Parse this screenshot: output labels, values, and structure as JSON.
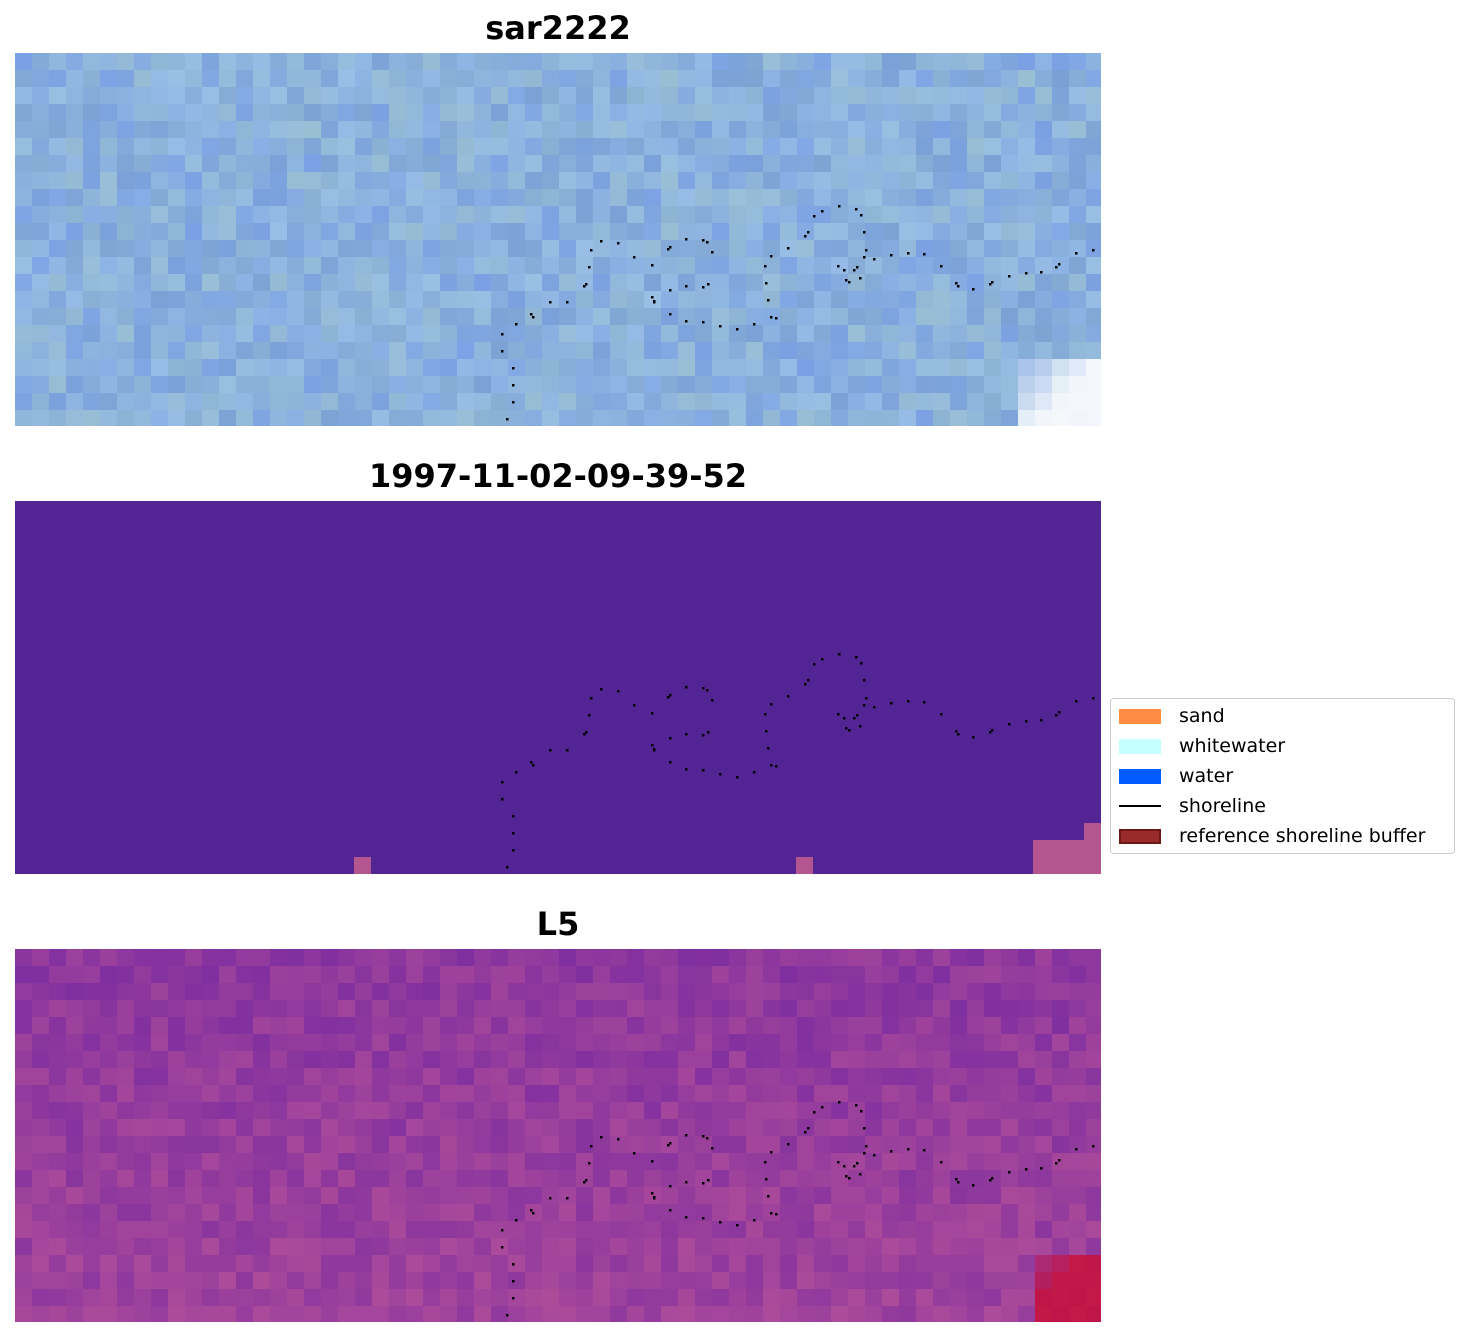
{
  "panels": [
    {
      "title": "sar2222",
      "style": "rgb"
    },
    {
      "title": "1997-11-02-09-39-52",
      "style": "class"
    },
    {
      "title": "L5",
      "style": "index"
    }
  ],
  "legend": {
    "items": [
      {
        "label": "sand",
        "color": "#ff8c42",
        "kind": "patch"
      },
      {
        "label": "whitewater",
        "color": "#c6ffff",
        "kind": "patch"
      },
      {
        "label": "water",
        "color": "#005cff",
        "kind": "patch"
      },
      {
        "label": "shoreline",
        "color": "#000000",
        "kind": "line"
      },
      {
        "label": "reference shoreline buffer",
        "color": "#9b2a2a",
        "border": "#6e1717",
        "kind": "patch"
      }
    ]
  },
  "colors": {
    "rgb_base": "#8fb0dd",
    "class_fill": "#532493",
    "class_buffer": "#b3558f",
    "index_base": "#7e2ea0",
    "index_hot": "#c80f3a",
    "shoreline": "#000000"
  }
}
